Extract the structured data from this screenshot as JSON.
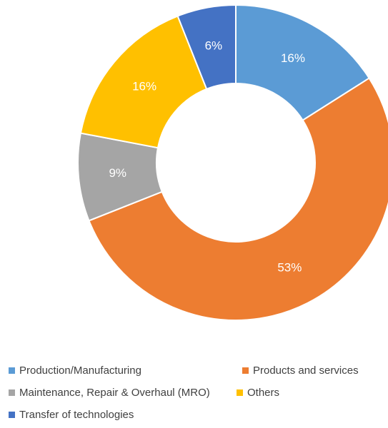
{
  "chart_data": {
    "type": "pie",
    "donut": true,
    "legend_position": "bottom",
    "slices": [
      {
        "label": "Production/Manufacturing",
        "value": 16,
        "display": "16%",
        "color": "#5B9BD5"
      },
      {
        "label": "Products and services",
        "value": 53,
        "display": "53%",
        "color": "#ED7D31"
      },
      {
        "label": "Maintenance, Repair & Overhaul (MRO)",
        "value": 9,
        "display": "9%",
        "color": "#A5A5A5"
      },
      {
        "label": "Others",
        "value": 16,
        "display": "16%",
        "color": "#FFC000"
      },
      {
        "label": "Transfer of technologies",
        "value": 6,
        "display": "6%",
        "color": "#4472C4"
      }
    ]
  }
}
